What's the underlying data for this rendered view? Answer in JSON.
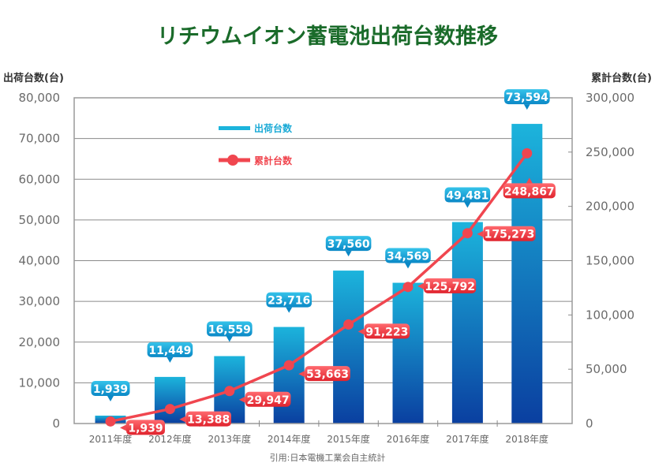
{
  "chart_data": {
    "type": "bar+line",
    "title": "リチウムイオン蓄電池出荷台数推移",
    "categories": [
      "2011年度",
      "2012年度",
      "2013年度",
      "2014年度",
      "2015年度",
      "2016年度",
      "2017年度",
      "2018年度"
    ],
    "series": [
      {
        "name": "出荷台数",
        "type": "bar",
        "axis": "left",
        "values": [
          1939,
          11449,
          16559,
          23716,
          37560,
          34569,
          49481,
          73594
        ],
        "labels": [
          "1,939",
          "11,449",
          "16,559",
          "23,716",
          "37,560",
          "34,569",
          "49,481",
          "73,594"
        ],
        "color_top": "#1cb4dc",
        "color_bottom": "#0a3fa0"
      },
      {
        "name": "累計台数",
        "type": "line",
        "axis": "right",
        "values": [
          1939,
          13388,
          29947,
          53663,
          91223,
          125792,
          175273,
          248867
        ],
        "labels": [
          "1,939",
          "13,388",
          "29,947",
          "53,663",
          "91,223",
          "125,792",
          "175,273",
          "248,867"
        ],
        "color": "#f0464f"
      }
    ],
    "ylabel_left": "出荷台数(台)",
    "ylabel_right": "累計台数(台)",
    "ylim_left": [
      0,
      80000
    ],
    "ylim_right": [
      0,
      300000
    ],
    "yticks_left": [
      "0",
      "10,000",
      "20,000",
      "30,000",
      "40,000",
      "50,000",
      "60,000",
      "70,000",
      "80,000"
    ],
    "yticks_right": [
      "0",
      "50,000",
      "100,000",
      "150,000",
      "200,000",
      "250,000",
      "300,000"
    ],
    "grid": true,
    "legend_position": "top-left",
    "source_note": "引用:日本電機工業会自主統計"
  }
}
